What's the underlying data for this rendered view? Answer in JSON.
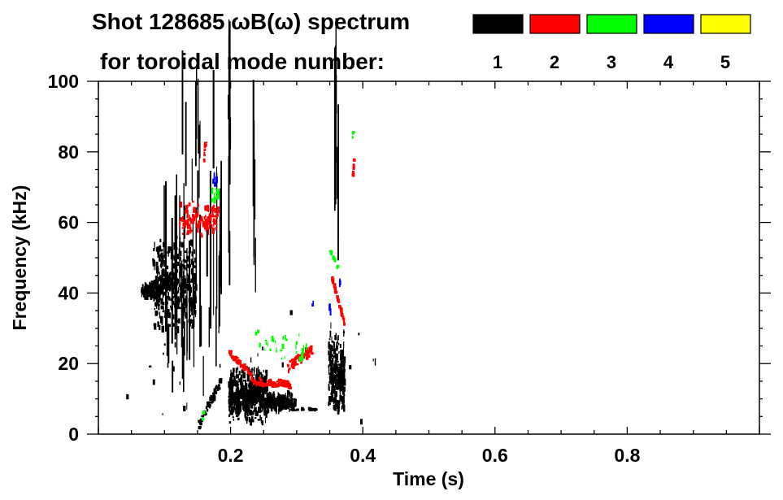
{
  "chart_data": {
    "type": "heatmap",
    "title_line1": "Shot 128685 ωB(ω) spectrum",
    "title_line2": "for toroidal mode number:",
    "xlabel": "Time (s)",
    "ylabel": "Frequency (kHz)",
    "xlim": [
      0,
      1
    ],
    "ylim": [
      0,
      100
    ],
    "x_ticks": [
      {
        "value": 0.2,
        "label": "0.2"
      },
      {
        "value": 0.4,
        "label": "0.4"
      },
      {
        "value": 0.6,
        "label": "0.6"
      },
      {
        "value": 0.8,
        "label": "0.8"
      }
    ],
    "y_ticks": [
      {
        "value": 0,
        "label": "0"
      },
      {
        "value": 20,
        "label": "20"
      },
      {
        "value": 40,
        "label": "40"
      },
      {
        "value": 60,
        "label": "60"
      },
      {
        "value": 80,
        "label": "80"
      },
      {
        "value": 100,
        "label": "100"
      }
    ],
    "x_minor_step": 0.05,
    "y_minor_step": 5,
    "legend": {
      "placement": "top-right",
      "entries": [
        {
          "mode": "1",
          "color": "#000000"
        },
        {
          "mode": "2",
          "color": "#ff0000"
        },
        {
          "mode": "3",
          "color": "#00ff00"
        },
        {
          "mode": "4",
          "color": "#0000ff"
        },
        {
          "mode": "5",
          "color": "#ffff00"
        }
      ]
    },
    "features": [
      {
        "mode": "1",
        "shape": "blob",
        "t": [
          0.064,
          0.097
        ],
        "f": [
          38.5,
          43
        ],
        "n": 140
      },
      {
        "mode": "1",
        "shape": "blob",
        "t": [
          0.081,
          0.146
        ],
        "f": [
          28,
          57
        ],
        "n": 420
      },
      {
        "mode": "1",
        "shape": "vlines",
        "t": [
          0.095,
          0.185
        ],
        "f": [
          3,
          62
        ],
        "n": 40
      },
      {
        "mode": "1",
        "shape": "vlines",
        "t": [
          0.12,
          0.205
        ],
        "f": [
          55,
          97
        ],
        "n": 12
      },
      {
        "mode": "1",
        "shape": "streak",
        "t": [
          0.15,
          0.185
        ],
        "f": [
          2.5,
          15.5
        ],
        "n": 60,
        "w": 2.5
      },
      {
        "mode": "1",
        "shape": "blob",
        "t": [
          0.196,
          0.253
        ],
        "f": [
          3,
          19
        ],
        "n": 520
      },
      {
        "mode": "1",
        "shape": "blob",
        "t": [
          0.253,
          0.297
        ],
        "f": [
          6,
          12
        ],
        "n": 200
      },
      {
        "mode": "1",
        "shape": "streak",
        "t": [
          0.297,
          0.33
        ],
        "f": [
          7,
          7
        ],
        "n": 12,
        "w": 0.6
      },
      {
        "mode": "1",
        "shape": "blob",
        "t": [
          0.347,
          0.371
        ],
        "f": [
          6,
          29
        ],
        "n": 260
      },
      {
        "mode": "1",
        "shape": "vlines",
        "t": [
          0.196,
          0.198
        ],
        "f": [
          25,
          100
        ],
        "n": 5
      },
      {
        "mode": "1",
        "shape": "vlines",
        "t": [
          0.233,
          0.237
        ],
        "f": [
          30,
          92
        ],
        "n": 5
      },
      {
        "mode": "1",
        "shape": "vlines",
        "t": [
          0.356,
          0.362
        ],
        "f": [
          35,
          100
        ],
        "n": 7
      },
      {
        "mode": "1",
        "shape": "blob",
        "t": [
          0.03,
          0.45
        ],
        "f": [
          1,
          40
        ],
        "n": 30
      },
      {
        "mode": "2",
        "shape": "blob",
        "t": [
          0.122,
          0.18
        ],
        "f": [
          56,
          66
        ],
        "n": 110
      },
      {
        "mode": "2",
        "shape": "streak",
        "t": [
          0.158,
          0.16
        ],
        "f": [
          76,
          83
        ],
        "n": 10,
        "w": 1
      },
      {
        "mode": "2",
        "shape": "streak",
        "t": [
          0.196,
          0.23
        ],
        "f": [
          23,
          17
        ],
        "n": 50,
        "w": 1.5
      },
      {
        "mode": "2",
        "shape": "streak",
        "t": [
          0.23,
          0.29
        ],
        "f": [
          15,
          14
        ],
        "n": 90,
        "w": 2
      },
      {
        "mode": "2",
        "shape": "streak",
        "t": [
          0.285,
          0.322
        ],
        "f": [
          19,
          24
        ],
        "n": 60,
        "w": 3
      },
      {
        "mode": "2",
        "shape": "streak",
        "t": [
          0.352,
          0.371
        ],
        "f": [
          44,
          31
        ],
        "n": 40,
        "w": 1
      },
      {
        "mode": "2",
        "shape": "streak",
        "t": [
          0.383,
          0.385
        ],
        "f": [
          72,
          78
        ],
        "n": 10,
        "w": 1
      },
      {
        "mode": "3",
        "shape": "blob",
        "t": [
          0.17,
          0.18
        ],
        "f": [
          65,
          70
        ],
        "n": 10
      },
      {
        "mode": "3",
        "shape": "blob",
        "t": [
          0.236,
          0.318
        ],
        "f": [
          20,
          30
        ],
        "n": 30
      },
      {
        "mode": "3",
        "shape": "streak",
        "t": [
          0.349,
          0.36
        ],
        "f": [
          52,
          47
        ],
        "n": 14,
        "w": 1
      },
      {
        "mode": "3",
        "shape": "streak",
        "t": [
          0.383,
          0.385
        ],
        "f": [
          84,
          87
        ],
        "n": 4,
        "w": 0.8
      },
      {
        "mode": "3",
        "shape": "streak",
        "t": [
          0.156,
          0.158
        ],
        "f": [
          4,
          7
        ],
        "n": 4,
        "w": 0.8
      },
      {
        "mode": "4",
        "shape": "blob",
        "t": [
          0.172,
          0.178
        ],
        "f": [
          70,
          74
        ],
        "n": 8
      },
      {
        "mode": "4",
        "shape": "blob",
        "t": [
          0.348,
          0.352
        ],
        "f": [
          34,
          37
        ],
        "n": 3
      },
      {
        "mode": "4",
        "shape": "blob",
        "t": [
          0.362,
          0.365
        ],
        "f": [
          42,
          44
        ],
        "n": 3
      },
      {
        "mode": "4",
        "shape": "blob",
        "t": [
          0.321,
          0.324
        ],
        "f": [
          36,
          38
        ],
        "n": 2
      }
    ]
  }
}
